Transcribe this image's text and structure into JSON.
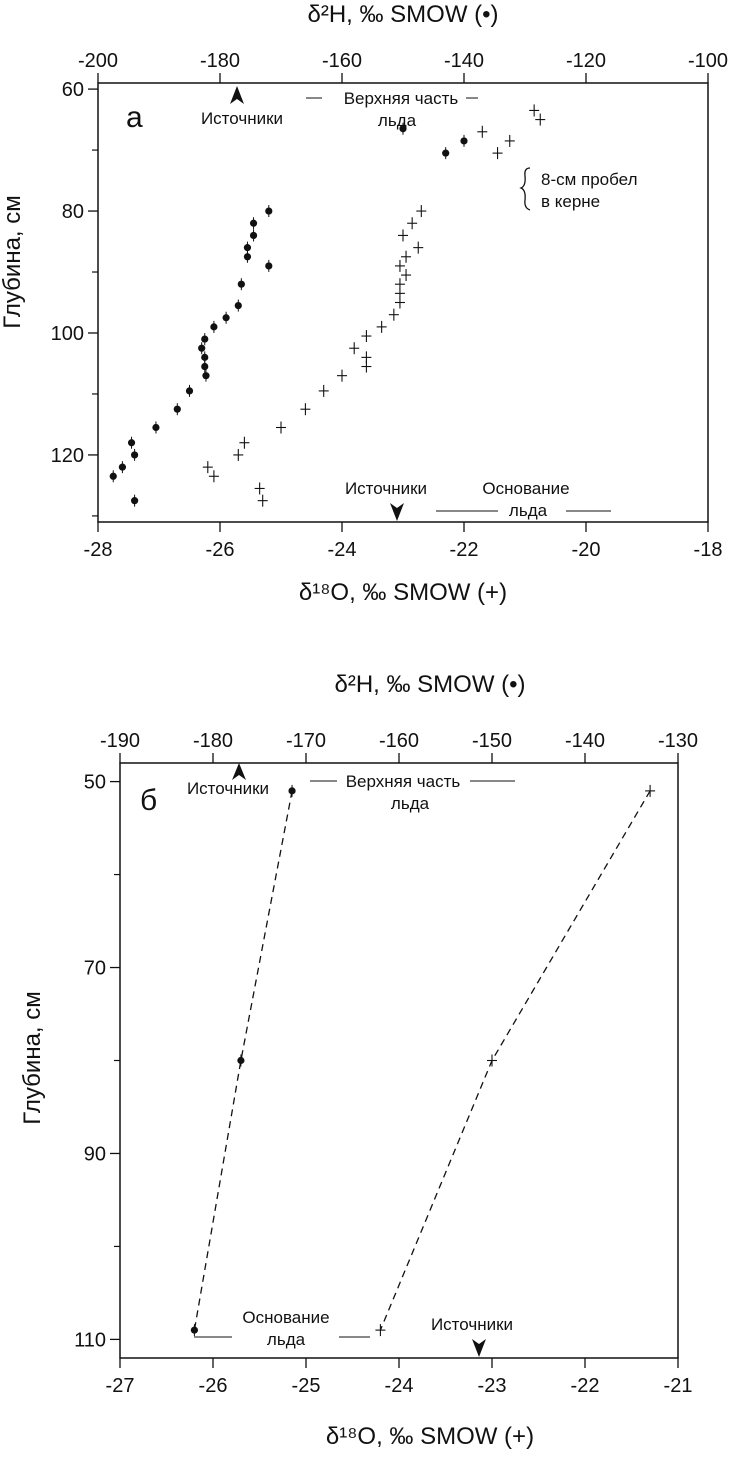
{
  "chart_data": [
    {
      "type": "scatter",
      "panel_label": "а",
      "top_axis": {
        "title": "δ²H, ‰ SMOW (•)",
        "range": [
          -200,
          -100
        ],
        "ticks": [
          -200,
          -180,
          -160,
          -140,
          -120,
          -100
        ]
      },
      "bottom_axis": {
        "title": "δ¹⁸O, ‰ SMOW (+)",
        "range": [
          -28,
          -18
        ],
        "ticks": [
          -28,
          -26,
          -24,
          -22,
          -20,
          -18
        ]
      },
      "y_axis": {
        "title": "Глубина, см",
        "range": [
          59,
          131
        ],
        "ticks": [
          60,
          80,
          100,
          120
        ],
        "inverted": true
      },
      "series": [
        {
          "marker": "dot",
          "axis": "top",
          "points": [
            {
              "x": -150,
              "y": 66.5
            },
            {
              "x": -140,
              "y": 68.5
            },
            {
              "x": -143,
              "y": 70.5
            },
            {
              "x": -172,
              "y": 80
            },
            {
              "x": -174.5,
              "y": 82
            },
            {
              "x": -174.5,
              "y": 84
            },
            {
              "x": -175.5,
              "y": 86
            },
            {
              "x": -175.5,
              "y": 87.5
            },
            {
              "x": -172,
              "y": 89
            },
            {
              "x": -176.5,
              "y": 92
            },
            {
              "x": -177,
              "y": 95.5
            },
            {
              "x": -179,
              "y": 97.5
            },
            {
              "x": -181,
              "y": 99
            },
            {
              "x": -182.5,
              "y": 101
            },
            {
              "x": -183,
              "y": 102.5
            },
            {
              "x": -182.5,
              "y": 104
            },
            {
              "x": -182.5,
              "y": 105.5
            },
            {
              "x": -182.3,
              "y": 107
            },
            {
              "x": -185,
              "y": 109.5
            },
            {
              "x": -187,
              "y": 112.5
            },
            {
              "x": -190.5,
              "y": 115.5
            },
            {
              "x": -194.5,
              "y": 118
            },
            {
              "x": -194,
              "y": 120
            },
            {
              "x": -196,
              "y": 122
            },
            {
              "x": -197.5,
              "y": 123.5
            },
            {
              "x": -194,
              "y": 127.5
            }
          ]
        },
        {
          "marker": "cross",
          "axis": "bottom",
          "points": [
            {
              "x": -20.85,
              "y": 63.5
            },
            {
              "x": -20.75,
              "y": 65
            },
            {
              "x": -21.7,
              "y": 67
            },
            {
              "x": -21.25,
              "y": 68.5
            },
            {
              "x": -21.45,
              "y": 70.5
            },
            {
              "x": -22.7,
              "y": 80
            },
            {
              "x": -22.85,
              "y": 82
            },
            {
              "x": -23.0,
              "y": 84
            },
            {
              "x": -22.75,
              "y": 86
            },
            {
              "x": -22.95,
              "y": 87.5
            },
            {
              "x": -23.05,
              "y": 89
            },
            {
              "x": -22.95,
              "y": 90.5
            },
            {
              "x": -23.05,
              "y": 92
            },
            {
              "x": -23.05,
              "y": 93.5
            },
            {
              "x": -23.05,
              "y": 95
            },
            {
              "x": -23.15,
              "y": 97
            },
            {
              "x": -23.35,
              "y": 99
            },
            {
              "x": -23.6,
              "y": 100.5
            },
            {
              "x": -23.8,
              "y": 102.5
            },
            {
              "x": -23.6,
              "y": 104
            },
            {
              "x": -23.6,
              "y": 105.5
            },
            {
              "x": -24.0,
              "y": 107
            },
            {
              "x": -24.3,
              "y": 109.5
            },
            {
              "x": -24.6,
              "y": 112.5
            },
            {
              "x": -25.0,
              "y": 115.5
            },
            {
              "x": -25.6,
              "y": 118
            },
            {
              "x": -25.7,
              "y": 120
            },
            {
              "x": -26.2,
              "y": 122
            },
            {
              "x": -26.1,
              "y": 123.5
            },
            {
              "x": -25.35,
              "y": 125.5
            },
            {
              "x": -25.3,
              "y": 127.5
            }
          ]
        }
      ],
      "annotations": {
        "sources_top": "Источники",
        "ice_top_line1": "Верхняя часть",
        "ice_top_line2": "льда",
        "core_gap_line1": "8-см пробел",
        "core_gap_line2": "в керне",
        "sources_bottom": "Источники",
        "ice_base_line1": "Основание",
        "ice_base_line2": "льда"
      }
    },
    {
      "type": "line",
      "panel_label": "б",
      "top_axis": {
        "title": "δ²H, ‰ SMOW (•)",
        "range": [
          -190,
          -130
        ],
        "ticks": [
          -190,
          -180,
          -170,
          -160,
          -150,
          -140,
          -130
        ]
      },
      "bottom_axis": {
        "title": "δ¹⁸O, ‰ SMOW (+)",
        "range": [
          -27,
          -21
        ],
        "ticks": [
          -27,
          -26,
          -25,
          -24,
          -23,
          -22,
          -21
        ]
      },
      "y_axis": {
        "title": "Глубина, см",
        "range": [
          48,
          112
        ],
        "ticks": [
          50,
          70,
          90,
          110
        ],
        "inverted": true
      },
      "series": [
        {
          "marker": "dot",
          "axis": "top",
          "style": "dashed",
          "points": [
            {
              "x": -171.5,
              "y": 51
            },
            {
              "x": -177,
              "y": 80
            },
            {
              "x": -182,
              "y": 109
            }
          ]
        },
        {
          "marker": "cross",
          "axis": "bottom",
          "style": "dashed",
          "points": [
            {
              "x": -21.3,
              "y": 51
            },
            {
              "x": -23.0,
              "y": 80
            },
            {
              "x": -24.2,
              "y": 109
            }
          ]
        }
      ],
      "annotations": {
        "sources_top": "Источники",
        "ice_top_line1": "Верхняя часть",
        "ice_top_line2": "льда",
        "ice_base_line1": "Основание",
        "ice_base_line2": "льда",
        "sources_bottom": "Источники"
      }
    }
  ]
}
